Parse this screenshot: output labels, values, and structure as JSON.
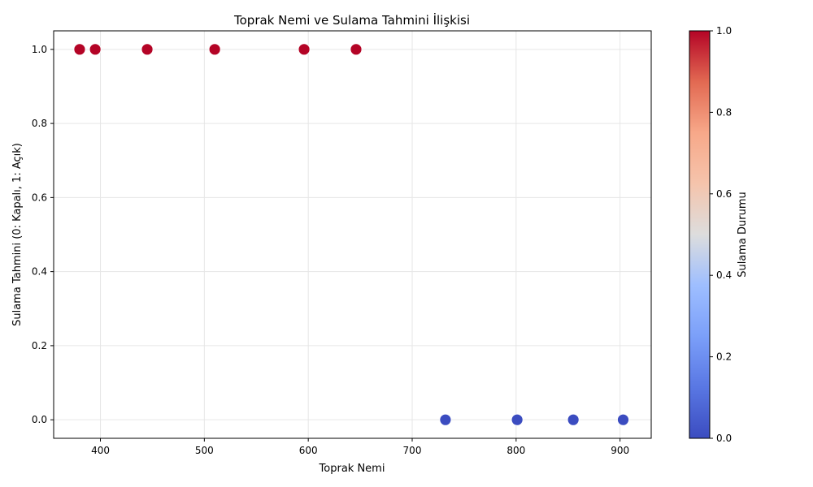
{
  "chart_data": {
    "type": "scatter",
    "title": "Toprak Nemi ve Sulama Tahmini İlişkisi",
    "xlabel": "Toprak Nemi",
    "ylabel": "Sulama Tahmini (0: Kapalı, 1: Açık)",
    "xlim": [
      355,
      930
    ],
    "ylim": [
      -0.05,
      1.05
    ],
    "xticks": [
      400,
      500,
      600,
      700,
      800,
      900
    ],
    "xtick_labels": [
      "400",
      "500",
      "600",
      "700",
      "800",
      "900"
    ],
    "yticks": [
      0.0,
      0.2,
      0.4,
      0.6,
      0.8,
      1.0
    ],
    "ytick_labels": [
      "0.0",
      "0.2",
      "0.4",
      "0.6",
      "0.8",
      "1.0"
    ],
    "grid": true,
    "points": [
      {
        "x": 380,
        "y": 1
      },
      {
        "x": 395,
        "y": 1
      },
      {
        "x": 445,
        "y": 1
      },
      {
        "x": 510,
        "y": 1
      },
      {
        "x": 596,
        "y": 1
      },
      {
        "x": 646,
        "y": 1
      },
      {
        "x": 732,
        "y": 0
      },
      {
        "x": 801,
        "y": 0
      },
      {
        "x": 855,
        "y": 0
      },
      {
        "x": 903,
        "y": 0
      }
    ],
    "colorbar": {
      "label": "Sulama Durumu",
      "colormap": "coolwarm",
      "range": [
        0,
        1
      ],
      "ticks": [
        0.0,
        0.2,
        0.4,
        0.6,
        0.8,
        1.0
      ],
      "tick_labels": [
        "0.0",
        "0.2",
        "0.4",
        "0.6",
        "0.8",
        "1.0"
      ],
      "low_color": "#3b4cc0",
      "mid_color": "#dddddd",
      "high_color": "#b40426"
    }
  }
}
